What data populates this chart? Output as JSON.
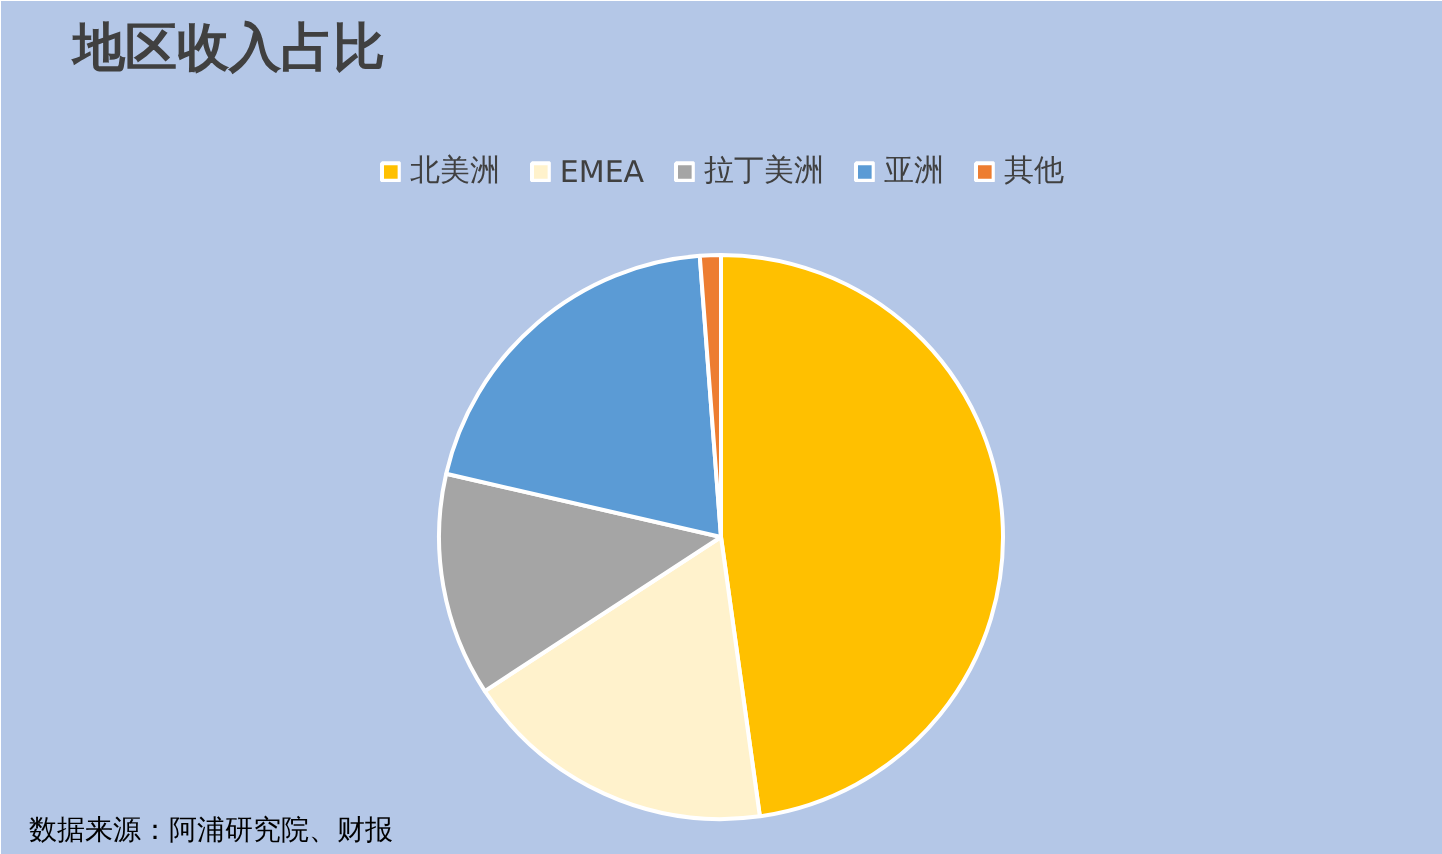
{
  "chart_data": {
    "type": "pie",
    "title": "地区收入占比",
    "categories": [
      "北美洲",
      "EMEA",
      "拉丁美洲",
      "亚洲",
      "其他"
    ],
    "values": [
      47.8,
      18.0,
      12.8,
      20.2,
      1.2
    ],
    "colors": [
      "#ffc000",
      "#fff2cc",
      "#a5a5a5",
      "#5b9bd5",
      "#ed7d31"
    ],
    "legend": "top",
    "annotations": [
      "数据来源：阿浦研究院、财报"
    ]
  }
}
